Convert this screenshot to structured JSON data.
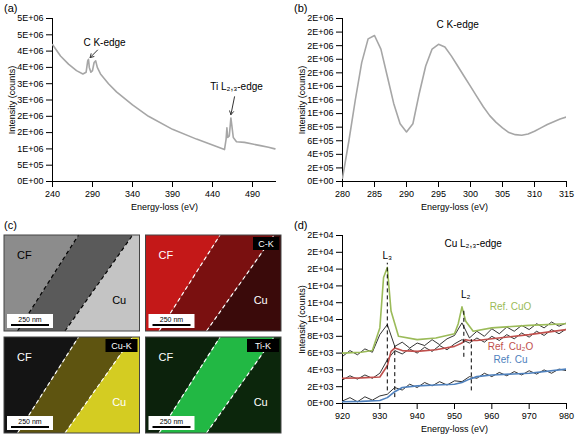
{
  "chart_data": [
    {
      "type": "line",
      "title": "(a)",
      "x_label": "Energy-loss (eV)",
      "y_label": "Intensity (counts)",
      "xlim": [
        240,
        520
      ],
      "xticks": [
        240,
        290,
        340,
        390,
        440,
        490
      ],
      "ylim": [
        0,
        5000000
      ],
      "yticks": [
        {
          "value": 0,
          "label": "0E+00"
        },
        {
          "value": 500000,
          "label": "5E+05"
        },
        {
          "value": 1000000,
          "label": "1E+06"
        },
        {
          "value": 1500000,
          "label": "2E+06"
        },
        {
          "value": 2000000,
          "label": "2E+06"
        },
        {
          "value": 2500000,
          "label": "3E+06"
        },
        {
          "value": 3000000,
          "label": "3E+06"
        },
        {
          "value": 3500000,
          "label": "4E+06"
        },
        {
          "value": 4000000,
          "label": "4E+06"
        },
        {
          "value": 4500000,
          "label": "5E+06"
        },
        {
          "value": 5000000,
          "label": "5E+06"
        }
      ],
      "grid": false,
      "series": [
        {
          "color": "#a6a6a6",
          "x": [
            240,
            250,
            260,
            270,
            278,
            282,
            284,
            285,
            286,
            288,
            290,
            292,
            294,
            296,
            300,
            310,
            320,
            340,
            360,
            390,
            420,
            440,
            450,
            455,
            457,
            458,
            459,
            461,
            463,
            464,
            466,
            470,
            480,
            490,
            500,
            510,
            518
          ],
          "values": [
            4200000,
            3850000,
            3600000,
            3400000,
            3300000,
            3350000,
            3700000,
            3750000,
            3500000,
            3350000,
            3400000,
            3650000,
            3700000,
            3500000,
            3300000,
            3000000,
            2750000,
            2350000,
            2000000,
            1600000,
            1300000,
            1120000,
            1030000,
            980000,
            1300000,
            1650000,
            1350000,
            1400000,
            1950000,
            1750000,
            1350000,
            1220000,
            1200000,
            1150000,
            1100000,
            1050000,
            1000000
          ]
        }
      ],
      "annotations": [
        {
          "text": "C K-edge",
          "x": 305,
          "y": 4250000,
          "point": [
            287,
            3800000
          ]
        },
        {
          "text": "Ti L₂,₃-edge",
          "x": 470,
          "y": 2900000,
          "point": [
            463,
            2050000
          ]
        }
      ]
    },
    {
      "type": "line",
      "title": "(b)",
      "x_label": "Energy-loss (eV)",
      "y_label": "Intensity (counts)",
      "xlim": [
        280,
        315
      ],
      "xticks": [
        280,
        285,
        290,
        295,
        300,
        305,
        310,
        315
      ],
      "ylim": [
        0,
        2400000
      ],
      "yticks": [
        {
          "value": 0,
          "label": "0E+00"
        },
        {
          "value": 200000,
          "label": "2E+05"
        },
        {
          "value": 400000,
          "label": "4E+05"
        },
        {
          "value": 600000,
          "label": "6E+05"
        },
        {
          "value": 800000,
          "label": "8E+05"
        },
        {
          "value": 1000000,
          "label": "1E+06"
        },
        {
          "value": 1200000,
          "label": "1E+06"
        },
        {
          "value": 1400000,
          "label": "1E+06"
        },
        {
          "value": 1600000,
          "label": "2E+06"
        },
        {
          "value": 1800000,
          "label": "2E+06"
        },
        {
          "value": 2000000,
          "label": "2E+06"
        },
        {
          "value": 2200000,
          "label": "2E+06"
        },
        {
          "value": 2400000,
          "label": "2E+06"
        }
      ],
      "grid": false,
      "series": [
        {
          "color": "#a6a6a6",
          "x": [
            280,
            281,
            282,
            283,
            284,
            285,
            286,
            287,
            288,
            289,
            290,
            291,
            292,
            293,
            294,
            295,
            296,
            297,
            298,
            299,
            300,
            301,
            302,
            303,
            304,
            305,
            306,
            307,
            308,
            309,
            310,
            311,
            312,
            313,
            314,
            315
          ],
          "values": [
            50000,
            600000,
            1200000,
            1750000,
            2100000,
            2150000,
            1950000,
            1550000,
            1150000,
            850000,
            730000,
            850000,
            1300000,
            1700000,
            1950000,
            2020000,
            1980000,
            1850000,
            1700000,
            1550000,
            1400000,
            1250000,
            1100000,
            970000,
            870000,
            790000,
            720000,
            690000,
            680000,
            700000,
            740000,
            790000,
            840000,
            880000,
            920000,
            950000
          ]
        }
      ],
      "annotations": [
        {
          "text": "C K-edge",
          "x": 298,
          "y": 2300000
        }
      ]
    },
    {
      "type": "line",
      "title": "(d)",
      "x_label": "Energy-loss (eV)",
      "y_label": "Intensity (counts)",
      "xlim": [
        920,
        980
      ],
      "xticks": [
        920,
        930,
        940,
        950,
        960,
        970,
        980
      ],
      "ylim": [
        0,
        20000
      ],
      "yticks": [
        {
          "value": 0,
          "label": "0E+00"
        },
        {
          "value": 2000,
          "label": "2E+03"
        },
        {
          "value": 4000,
          "label": "4E+03"
        },
        {
          "value": 6000,
          "label": "6E+03"
        },
        {
          "value": 8000,
          "label": "8E+03"
        },
        {
          "value": 10000,
          "label": "1E+04"
        },
        {
          "value": 12000,
          "label": "1E+04"
        },
        {
          "value": 14000,
          "label": "1E+04"
        },
        {
          "value": 16000,
          "label": "2E+04"
        },
        {
          "value": 18000,
          "label": "2E+04"
        },
        {
          "value": 20000,
          "label": "2E+04"
        }
      ],
      "grid": false,
      "series": [
        {
          "color": "#000000",
          "x": [
            920,
            922,
            924,
            926,
            928,
            930,
            932,
            934,
            936,
            938,
            940,
            942,
            944,
            946,
            948,
            950,
            952,
            954,
            956,
            958,
            960,
            962,
            964,
            966,
            968,
            970,
            972,
            974,
            976,
            978,
            980
          ],
          "values": [
            5600,
            6300,
            5800,
            6500,
            6100,
            8200,
            9400,
            6800,
            7300,
            6600,
            7200,
            6900,
            7600,
            7000,
            7700,
            8100,
            9600,
            7800,
            8600,
            8000,
            8900,
            8300,
            9100,
            8600,
            9300,
            8800,
            9500,
            9000,
            9700,
            9200,
            9600
          ]
        },
        {
          "color": "#000000",
          "x": [
            920,
            922,
            924,
            926,
            928,
            930,
            932,
            934,
            936,
            938,
            940,
            942,
            944,
            946,
            948,
            950,
            952,
            954,
            956,
            958,
            960,
            962,
            964,
            966,
            968,
            970,
            972,
            974,
            976,
            978,
            980
          ],
          "values": [
            2800,
            3300,
            2900,
            3400,
            3000,
            3600,
            5200,
            6300,
            5900,
            6500,
            6000,
            6700,
            6200,
            6900,
            6400,
            7100,
            7600,
            7200,
            7800,
            7300,
            8000,
            7500,
            8200,
            7700,
            8400,
            7900,
            8600,
            8100,
            8800,
            8300,
            8900
          ]
        },
        {
          "color": "#000000",
          "x": [
            920,
            922,
            924,
            926,
            928,
            930,
            932,
            934,
            936,
            938,
            940,
            942,
            944,
            946,
            948,
            950,
            952,
            954,
            956,
            958,
            960,
            962,
            964,
            966,
            968,
            970,
            972,
            974,
            976,
            978,
            980
          ],
          "values": [
            300,
            700,
            200,
            800,
            400,
            900,
            1100,
            1900,
            1600,
            2300,
            1900,
            2500,
            2100,
            2600,
            2200,
            2700,
            2600,
            3200,
            3000,
            3600,
            3200,
            3700,
            3300,
            3800,
            3400,
            3900,
            3500,
            4000,
            3600,
            4100,
            3900
          ]
        },
        {
          "color": "#9bbb59",
          "x": [
            920,
            925,
            928,
            930,
            931,
            932,
            933,
            935,
            940,
            945,
            950,
            951,
            952,
            953,
            955,
            960,
            970,
            980
          ],
          "values": [
            6000,
            6100,
            6300,
            9000,
            15000,
            16200,
            11000,
            8000,
            7600,
            7800,
            8300,
            9500,
            11500,
            9800,
            8600,
            9000,
            9300,
            9500
          ]
        },
        {
          "color": "#c0504d",
          "x": [
            920,
            925,
            930,
            932,
            933,
            934,
            936,
            940,
            945,
            950,
            952,
            953,
            954,
            956,
            960,
            970,
            980
          ],
          "values": [
            3000,
            3050,
            3150,
            4500,
            6200,
            6600,
            6300,
            6200,
            6400,
            6800,
            7200,
            7600,
            7500,
            7500,
            7700,
            8200,
            8800
          ]
        },
        {
          "color": "#4f81bd",
          "x": [
            920,
            925,
            930,
            932,
            934,
            936,
            940,
            945,
            950,
            952,
            954,
            956,
            960,
            970,
            980
          ],
          "values": [
            200,
            250,
            350,
            700,
            1400,
            1900,
            2100,
            2200,
            2300,
            2500,
            2900,
            3200,
            3400,
            3600,
            4100
          ]
        }
      ],
      "vlines": [
        {
          "x": 932,
          "y": [
            1500,
            16700
          ]
        },
        {
          "x": 934,
          "y": [
            700,
            6800
          ]
        },
        {
          "x": 952.5,
          "y": [
            5500,
            11000
          ]
        },
        {
          "x": 954.5,
          "y": [
            1500,
            7600
          ]
        }
      ],
      "annotations": [
        {
          "text": "Cu L₂,₃-edge",
          "x": 955,
          "y": 19000
        },
        {
          "text": "L₃",
          "x": 932,
          "y": 17600
        },
        {
          "text": "L₂",
          "x": 953,
          "y": 13000
        },
        {
          "text": "Ref. CuO",
          "x": 965,
          "y": 11500,
          "color": "#9bbb59"
        },
        {
          "text": "Ref. Cu₂O",
          "x": 965,
          "y": 6700,
          "color": "#c0504d"
        },
        {
          "text": "Ref. Cu",
          "x": 965,
          "y": 5200,
          "color": "#4f81bd"
        }
      ]
    }
  ],
  "panel_c": {
    "title": "(c)",
    "tiles": [
      {
        "texts": [
          "CF",
          "Cu"
        ],
        "colors": [
          "#8c8c8c",
          "#5a5a5a",
          "#c4c4c4"
        ],
        "scale_bar": "250 nm"
      },
      {
        "texts": [
          "CF",
          "Cu"
        ],
        "colors": [
          "#c41818",
          "#7a1010",
          "#3a0a0a"
        ],
        "map": "C-K",
        "scale_bar": "250 nm"
      },
      {
        "texts": [
          "CF",
          "Cu"
        ],
        "colors": [
          "#141414",
          "#5e5410",
          "#d4cc22"
        ],
        "map": "Cu-K",
        "scale_bar": "250 nm"
      },
      {
        "texts": [
          "CF",
          "Cu"
        ],
        "colors": [
          "#0c220c",
          "#22b844",
          "#0c260c"
        ],
        "map": "Ti-K",
        "scale_bar": "250 nm"
      }
    ]
  }
}
